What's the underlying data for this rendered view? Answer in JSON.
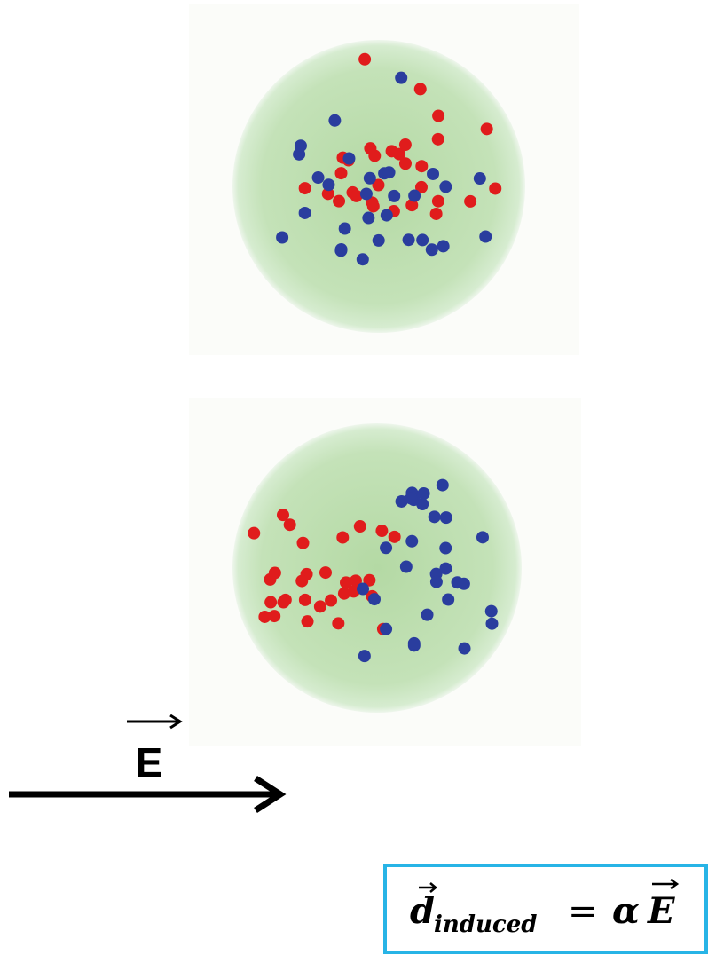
{
  "field_label": "E",
  "formula": {
    "lhs": "d",
    "subscript": "induced",
    "equals": "=",
    "coefficient": "α",
    "vector": "E"
  }
}
